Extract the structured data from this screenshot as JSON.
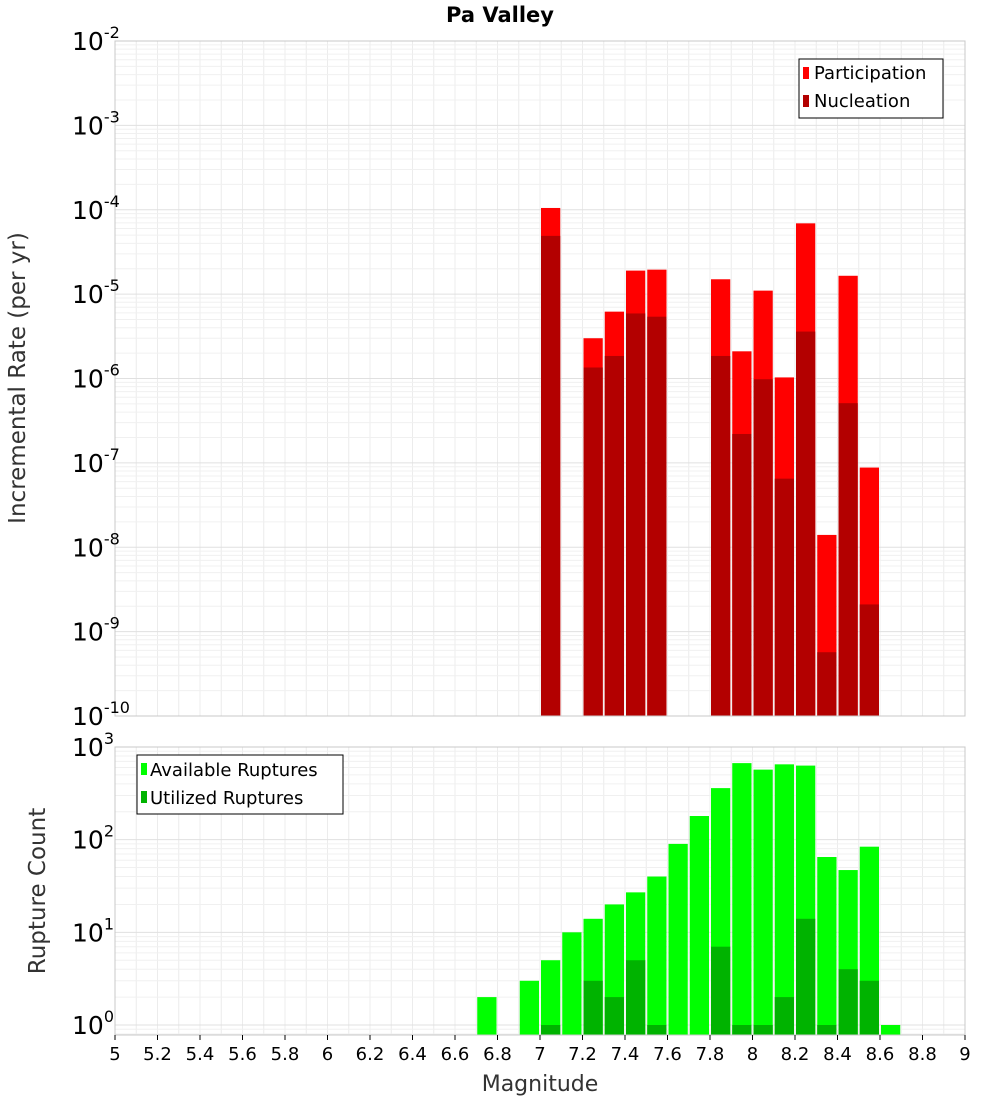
{
  "chart_data": [
    {
      "type": "bar",
      "title": "Pa Valley",
      "xlabel": "Magnitude",
      "ylabel": "Incremental Rate (per yr)",
      "yscale": "log",
      "ylim": [
        1e-10,
        0.01
      ],
      "xlim": [
        5,
        9
      ],
      "bar_width": 0.1,
      "y_tick_labels": [
        {
          "base": "10",
          "exp": "-10",
          "value": 1e-10
        },
        {
          "base": "10",
          "exp": "-9",
          "value": 1e-09
        },
        {
          "base": "10",
          "exp": "-8",
          "value": 1e-08
        },
        {
          "base": "10",
          "exp": "-7",
          "value": 1e-07
        },
        {
          "base": "10",
          "exp": "-6",
          "value": 1e-06
        },
        {
          "base": "10",
          "exp": "-5",
          "value": 1e-05
        },
        {
          "base": "10",
          "exp": "-4",
          "value": 0.0001
        },
        {
          "base": "10",
          "exp": "-3",
          "value": 0.001
        },
        {
          "base": "10",
          "exp": "-2",
          "value": 0.01
        }
      ],
      "legend": {
        "position": "top-right"
      },
      "series": [
        {
          "name": "Participation",
          "color": "#ff0000",
          "x": [
            7.05,
            7.25,
            7.35,
            7.45,
            7.55,
            7.85,
            7.95,
            8.05,
            8.15,
            8.25,
            8.35,
            8.45,
            8.55
          ],
          "values": [
            0.000105,
            3e-06,
            6.2e-06,
            1.9e-05,
            1.95e-05,
            1.5e-05,
            2.1e-06,
            1.1e-05,
            1.03e-06,
            6.9e-05,
            1.4e-08,
            1.65e-05,
            8.8e-08
          ]
        },
        {
          "name": "Nucleation",
          "color": "#b30000",
          "x": [
            7.05,
            7.25,
            7.35,
            7.45,
            7.55,
            7.85,
            7.95,
            8.05,
            8.15,
            8.25,
            8.35,
            8.45,
            8.55
          ],
          "values": [
            4.9e-05,
            1.35e-06,
            1.85e-06,
            5.9e-06,
            5.4e-06,
            1.85e-06,
            2.2e-07,
            9.8e-07,
            6.5e-08,
            3.6e-06,
            5.7e-10,
            5.1e-07,
            2.1e-09
          ]
        }
      ]
    },
    {
      "type": "bar",
      "title": "",
      "xlabel": "Magnitude",
      "ylabel": "Rupture Count",
      "yscale": "log",
      "ylim": [
        0.78,
        1000
      ],
      "xlim": [
        5,
        9
      ],
      "bar_width": 0.1,
      "x_ticks": [
        "5",
        "5.2",
        "5.4",
        "5.6",
        "5.8",
        "6",
        "6.2",
        "6.4",
        "6.6",
        "6.8",
        "7",
        "7.2",
        "7.4",
        "7.6",
        "7.8",
        "8",
        "8.2",
        "8.4",
        "8.6",
        "8.8",
        "9"
      ],
      "y_tick_labels": [
        {
          "base": "10",
          "exp": "0",
          "value": 1
        },
        {
          "base": "10",
          "exp": "1",
          "value": 10
        },
        {
          "base": "10",
          "exp": "2",
          "value": 100
        },
        {
          "base": "10",
          "exp": "3",
          "value": 1000
        }
      ],
      "legend": {
        "position": "top-left"
      },
      "series": [
        {
          "name": "Available Ruptures",
          "color": "#00ff00",
          "x": [
            6.75,
            6.95,
            7.05,
            7.15,
            7.25,
            7.35,
            7.45,
            7.55,
            7.65,
            7.75,
            7.85,
            7.95,
            8.05,
            8.15,
            8.25,
            8.35,
            8.45,
            8.55,
            8.65
          ],
          "values": [
            2,
            3,
            5,
            10,
            14,
            20,
            27,
            40,
            90,
            180,
            360,
            670,
            570,
            650,
            630,
            65,
            47,
            84,
            1
          ]
        },
        {
          "name": "Utilized Ruptures",
          "color": "#00b300",
          "x": [
            7.05,
            7.25,
            7.35,
            7.45,
            7.55,
            7.85,
            7.95,
            8.05,
            8.15,
            8.25,
            8.35,
            8.45,
            8.55
          ],
          "values": [
            1,
            3,
            2,
            5,
            1,
            7,
            1,
            1,
            2,
            14,
            1,
            4,
            3
          ]
        }
      ]
    }
  ]
}
